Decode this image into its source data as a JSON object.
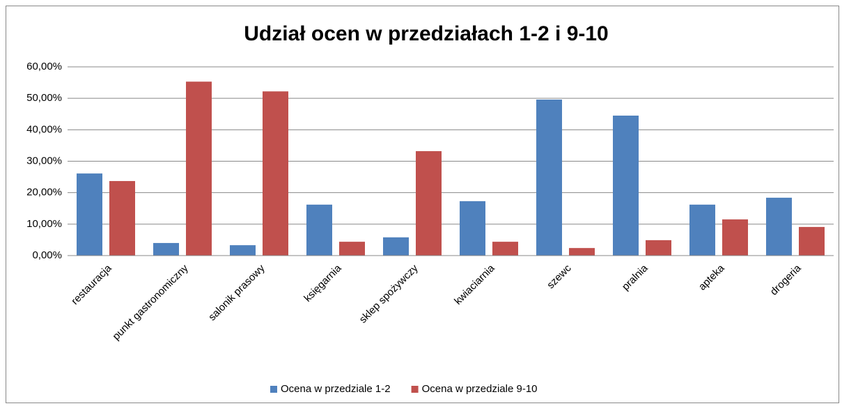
{
  "chart_data": {
    "type": "bar",
    "title": "Udział ocen w przedziałach 1-2 i 9-10",
    "categories": [
      "restauracja",
      "punkt gastronomiczny",
      "salonik prasowy",
      "księgarnia",
      "sklep spożywczy",
      "kwiaciarnia",
      "szewc",
      "pralnia",
      "apteka",
      "drogeria"
    ],
    "series": [
      {
        "name": "Ocena w przedziale 1-2",
        "color": "#4f81bd",
        "values": [
          26.1,
          4.0,
          3.3,
          16.2,
          5.8,
          17.3,
          49.6,
          44.5,
          16.2,
          18.4
        ]
      },
      {
        "name": "Ocena w przedziale 9-10",
        "color": "#c0504d",
        "values": [
          23.7,
          55.3,
          52.2,
          4.4,
          33.2,
          4.4,
          2.4,
          4.9,
          11.5,
          9.1
        ]
      }
    ],
    "ylim": [
      0,
      60
    ],
    "yticks": [
      {
        "value": 0,
        "label": "0,00%"
      },
      {
        "value": 10,
        "label": "10,00%"
      },
      {
        "value": 20,
        "label": "20,00%"
      },
      {
        "value": 30,
        "label": "30,00%"
      },
      {
        "value": 40,
        "label": "40,00%"
      },
      {
        "value": 50,
        "label": "50,00%"
      },
      {
        "value": 60,
        "label": "60,00%"
      }
    ],
    "grid": true,
    "legend": "bottom"
  }
}
